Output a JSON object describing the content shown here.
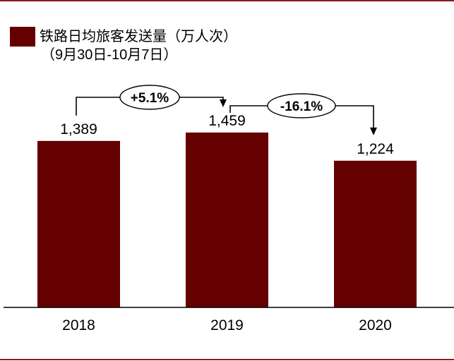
{
  "chart_data": {
    "type": "bar",
    "legend": {
      "line1": "铁路日均旅客发送量（万人次）",
      "line2": "（9月30日-10月7日）",
      "color": "#650000"
    },
    "categories": [
      "2018",
      "2019",
      "2020"
    ],
    "series": [
      {
        "name": "铁路日均旅客发送量（万人次）",
        "values": [
          1389,
          1459,
          1224
        ],
        "labels": [
          "1,389",
          "1,459",
          "1,224"
        ]
      }
    ],
    "ylim": [
      0,
      1700
    ],
    "grid": false,
    "annotations": [
      {
        "text": "+5.1%",
        "from": "2018",
        "to": "2019"
      },
      {
        "text": "-16.1%",
        "from": "2019",
        "to": "2020"
      }
    ],
    "colors": {
      "bar": "#650000",
      "frame_line": "#8b1a1a",
      "axis": "#000000"
    }
  }
}
